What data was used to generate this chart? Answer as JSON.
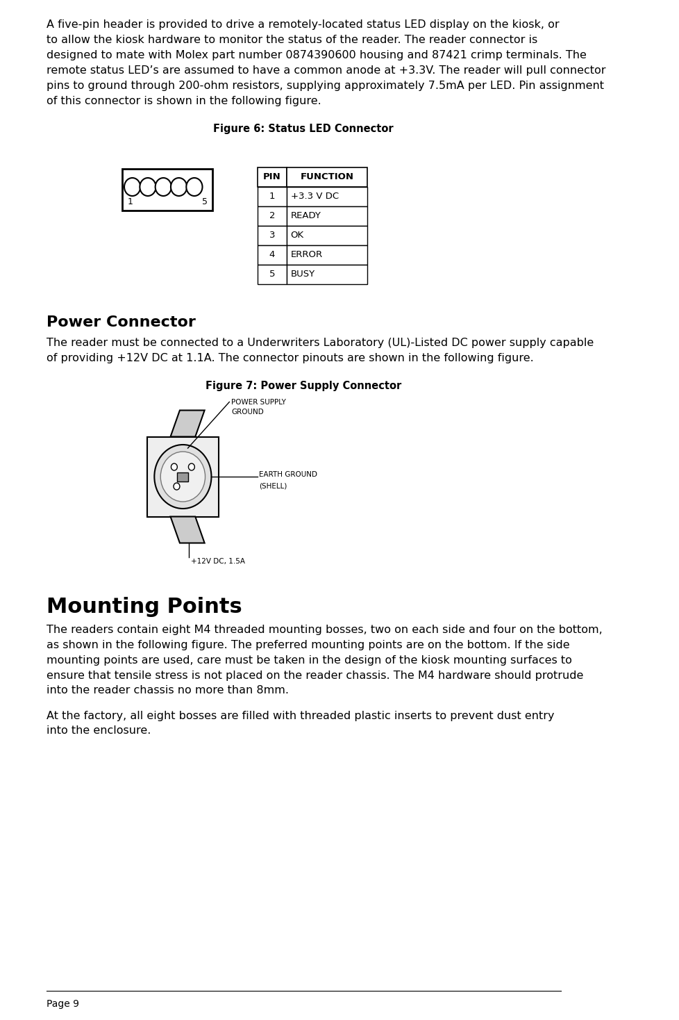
{
  "page_number": "Page 9",
  "background_color": "#ffffff",
  "text_color": "#000000",
  "body_font_size": 11.5,
  "paragraph1": "A five-pin header is provided to drive a remotely-located status LED display on the kiosk, or to allow the kiosk hardware to monitor the status of the reader. The reader connector is designed to mate with Molex part number 0874390600 housing and 87421 crimp terminals. The remote status LED’s are assumed to have a common anode at +3.3V. The reader will pull connector pins to ground through 200-ohm resistors, supplying approximately 7.5mA per LED. Pin assignment of this connector is shown in the following figure.",
  "figure6_caption": "Figure 6: Status LED Connector",
  "table_headers": [
    "PIN",
    "FUNCTION"
  ],
  "table_rows": [
    [
      "1",
      "+3.3 V DC"
    ],
    [
      "2",
      "READY"
    ],
    [
      "3",
      "OK"
    ],
    [
      "4",
      "ERROR"
    ],
    [
      "5",
      "BUSY"
    ]
  ],
  "section2_title": "Power Connector",
  "paragraph2": "The reader must be connected to a Underwriters Laboratory (UL)-Listed DC power supply capable of providing +12V DC at 1.1A. The connector pinouts are shown in the following figure.",
  "figure7_caption": "Figure 7: Power Supply Connector",
  "section3_title": "Mounting Points",
  "paragraph3a": "The readers contain eight M4 threaded mounting bosses, two on each side and four on the bottom, as shown in the following figure. The preferred mounting points are on the bottom. If the side mounting points are used, care must be taken in the design of the kiosk mounting surfaces to ensure that tensile stress is not placed on the reader chassis. The M4 hardware should protrude into the reader chassis no more than 8mm.",
  "paragraph3b": "At the factory, all eight bosses are filled with threaded plastic inserts to prevent dust entry into the enclosure."
}
